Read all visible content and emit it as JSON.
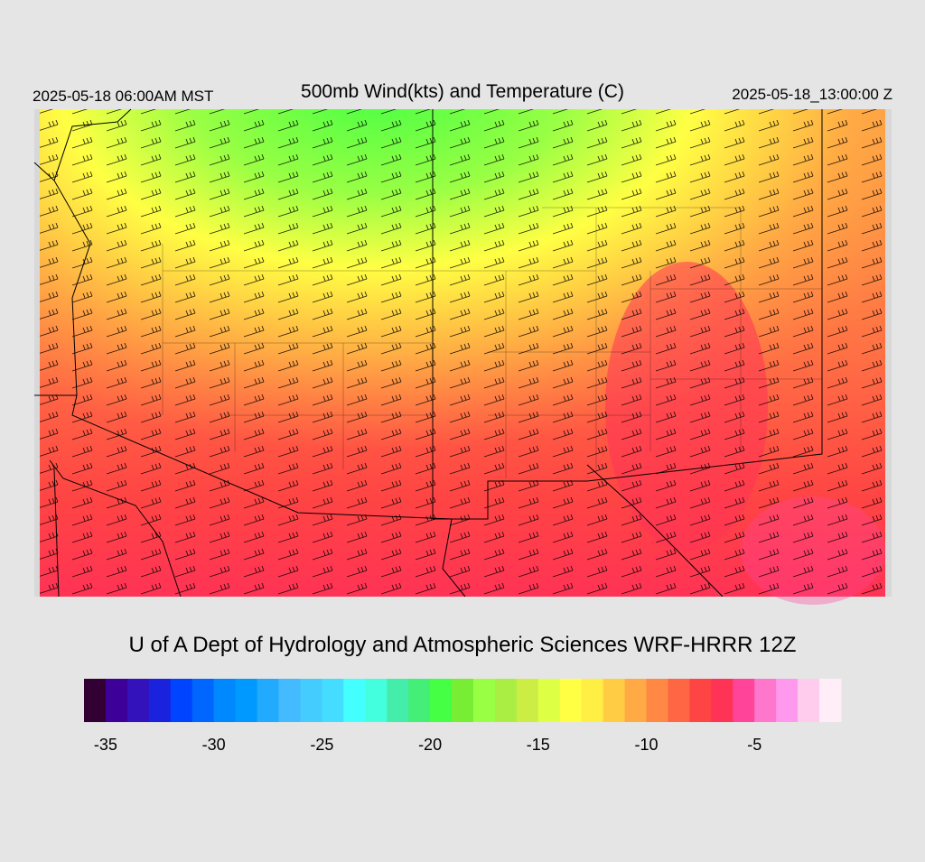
{
  "header": {
    "left": "2025-05-18 06:00AM MST",
    "title": "500mb Wind(kts) and Temperature (C)",
    "right": "2025-05-18_13:00:00 Z"
  },
  "credit": "U of A Dept of Hydrology and Atmospheric Sciences WRF-HRRR 12Z",
  "colorbar": {
    "range": [
      -36,
      -1
    ],
    "ticks": [
      -35,
      -30,
      -25,
      -20,
      -15,
      -10,
      -5
    ],
    "colors": [
      "#330033",
      "#3d0099",
      "#3311bb",
      "#1a22dd",
      "#0044ff",
      "#0066ff",
      "#0088ff",
      "#0099ff",
      "#22aaff",
      "#44bbff",
      "#44ccff",
      "#44ddff",
      "#44ffff",
      "#44ffdd",
      "#44eeaa",
      "#44ee77",
      "#44ff44",
      "#77ee33",
      "#99ff44",
      "#aaee44",
      "#ccee44",
      "#ddff44",
      "#ffff44",
      "#ffee44",
      "#ffcc44",
      "#ffaa44",
      "#ff8844",
      "#ff6644",
      "#ff4444",
      "#ff3355",
      "#ff4499",
      "#ff77cc",
      "#ff99ee",
      "#ffccee",
      "#ffeef8"
    ]
  }
}
